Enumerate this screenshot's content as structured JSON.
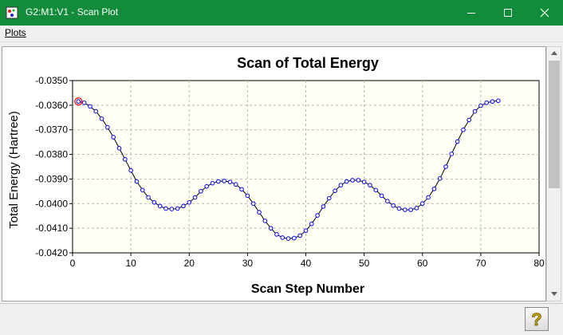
{
  "window": {
    "title": "G2:M1:V1 - Scan Plot"
  },
  "menu": {
    "plots": "Plots"
  },
  "icons": {
    "app": "plot-document-icon",
    "minimize": "minimize-icon",
    "maximize": "maximize-icon",
    "close": "close-icon",
    "help": "help-question-icon",
    "scroll_up": "scroll-up-arrow-icon",
    "scroll_down": "scroll-down-arrow-icon"
  },
  "colors": {
    "titlebar": "#128c3a",
    "plot_bg": "#fffff4",
    "line": "#000000",
    "marker": "#0000ff",
    "highlight": "#ff0000"
  },
  "chart_data": {
    "type": "line",
    "title": "Scan of Total Energy",
    "xlabel": "Scan Step Number",
    "ylabel": "Total Energy (Hartree)",
    "xlim": [
      0,
      80
    ],
    "ylim": [
      -0.042,
      -0.035
    ],
    "xticks": [
      0,
      10,
      20,
      30,
      40,
      50,
      60,
      70,
      80
    ],
    "yticks": [
      "-0.0350",
      "-0.0360",
      "-0.0370",
      "-0.0380",
      "-0.0390",
      "-0.0400",
      "-0.0410",
      "-0.0420"
    ],
    "ytick_values": [
      -0.035,
      -0.036,
      -0.037,
      -0.038,
      -0.039,
      -0.04,
      -0.041,
      -0.042
    ],
    "grid": true,
    "marker": "circle",
    "highlighted_point_index": 0,
    "series": [
      {
        "x": [
          1,
          2,
          3,
          4,
          5,
          6,
          7,
          8,
          9,
          10,
          11,
          12,
          13,
          14,
          15,
          16,
          17,
          18,
          19,
          20,
          21,
          22,
          23,
          24,
          25,
          26,
          27,
          28,
          29,
          30,
          31,
          32,
          33,
          34,
          35,
          36,
          37,
          38,
          39,
          40,
          41,
          42,
          43,
          44,
          45,
          46,
          47,
          48,
          49,
          50,
          51,
          52,
          53,
          54,
          55,
          56,
          57,
          58,
          59,
          60,
          61,
          62,
          63,
          64,
          65,
          66,
          67,
          68,
          69,
          70,
          71,
          72,
          73
        ],
        "y": [
          -0.03585,
          -0.0359,
          -0.03605,
          -0.03625,
          -0.03655,
          -0.0369,
          -0.0373,
          -0.03775,
          -0.0382,
          -0.03865,
          -0.0391,
          -0.03945,
          -0.03975,
          -0.03995,
          -0.0401,
          -0.0402,
          -0.04022,
          -0.0402,
          -0.0401,
          -0.03995,
          -0.03975,
          -0.0395,
          -0.0393,
          -0.03917,
          -0.0391,
          -0.03908,
          -0.03912,
          -0.03922,
          -0.03942,
          -0.03968,
          -0.04,
          -0.04035,
          -0.0407,
          -0.041,
          -0.04125,
          -0.04138,
          -0.04142,
          -0.0414,
          -0.0413,
          -0.0411,
          -0.04082,
          -0.04048,
          -0.04012,
          -0.03978,
          -0.03948,
          -0.03925,
          -0.0391,
          -0.03905,
          -0.03905,
          -0.03912,
          -0.03925,
          -0.03945,
          -0.03968,
          -0.0399,
          -0.04008,
          -0.0402,
          -0.04025,
          -0.04025,
          -0.04018,
          -0.04,
          -0.03975,
          -0.0394,
          -0.03898,
          -0.0385,
          -0.03798,
          -0.03748,
          -0.037,
          -0.0366,
          -0.03625,
          -0.03602,
          -0.0359,
          -0.03585,
          -0.03582
        ]
      }
    ]
  }
}
